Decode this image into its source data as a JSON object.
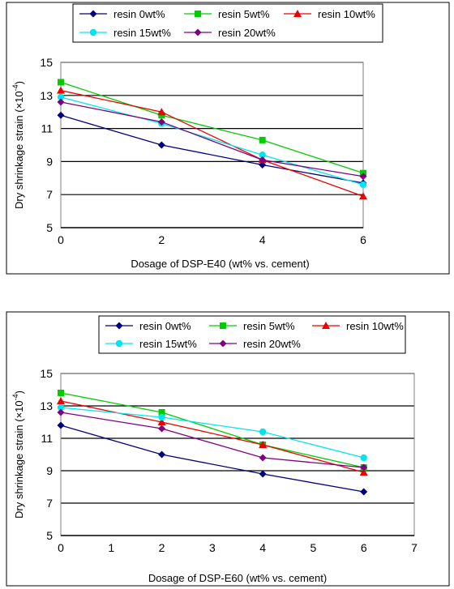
{
  "colors": {
    "resin_0": "#000080",
    "resin_5": "#00cc00",
    "resin_10": "#ee0000",
    "resin_15": "#00e5ee",
    "resin_20": "#800080",
    "gridline": "#000000",
    "border": "#000000"
  },
  "chart_data": [
    {
      "type": "line",
      "xlabel": "Dosage of DSP-E40 (wt% vs. cement)",
      "ylabel": "Dry shrinkage strain (×10",
      "ylabel_exponent": "-4",
      "ylabel_close": ")",
      "x_ticks": [
        0,
        2,
        4,
        6
      ],
      "y_ticks": [
        5,
        7,
        9,
        11,
        13,
        15
      ],
      "xlim": [
        0,
        6
      ],
      "ylim": [
        5,
        15
      ],
      "grid": "horizontal",
      "legend_placement": "top",
      "x": [
        0,
        2,
        4,
        6
      ],
      "series": [
        {
          "name": "resin 0wt%",
          "marker": "diamond",
          "color_key": "resin_0",
          "values": [
            11.8,
            10.0,
            8.8,
            7.7
          ]
        },
        {
          "name": "resin 5wt%",
          "marker": "square",
          "color_key": "resin_5",
          "values": [
            13.8,
            11.8,
            10.3,
            8.3
          ]
        },
        {
          "name": "resin 10wt%",
          "marker": "triangle",
          "color_key": "resin_10",
          "values": [
            13.3,
            12.0,
            9.1,
            6.9
          ]
        },
        {
          "name": "resin 15wt%",
          "marker": "circle",
          "color_key": "resin_15",
          "values": [
            12.9,
            11.3,
            9.4,
            7.6
          ]
        },
        {
          "name": "resin 20wt%",
          "marker": "diamond",
          "color_key": "resin_20",
          "values": [
            12.6,
            11.4,
            9.1,
            8.1
          ]
        }
      ]
    },
    {
      "type": "line",
      "xlabel": "Dosage of DSP-E60 (wt% vs. cement)",
      "ylabel": "Dry shrinkage strain (×10",
      "ylabel_exponent": "-4",
      "ylabel_close": ")",
      "x_ticks": [
        0,
        1,
        2,
        3,
        4,
        5,
        6,
        7
      ],
      "y_ticks": [
        5,
        7,
        9,
        11,
        13,
        15
      ],
      "xlim": [
        0,
        7
      ],
      "ylim": [
        5,
        15
      ],
      "grid": "horizontal",
      "legend_placement": "top",
      "x": [
        0,
        2,
        4,
        6
      ],
      "series": [
        {
          "name": "resin 0wt%",
          "marker": "diamond",
          "color_key": "resin_0",
          "values": [
            11.8,
            10.0,
            8.8,
            7.7
          ]
        },
        {
          "name": "resin 5wt%",
          "marker": "square",
          "color_key": "resin_5",
          "values": [
            13.8,
            12.6,
            10.6,
            9.2
          ]
        },
        {
          "name": "resin 10wt%",
          "marker": "triangle",
          "color_key": "resin_10",
          "values": [
            13.3,
            12.0,
            10.6,
            8.9
          ]
        },
        {
          "name": "resin 15wt%",
          "marker": "circle",
          "color_key": "resin_15",
          "values": [
            12.9,
            12.3,
            11.4,
            9.8
          ]
        },
        {
          "name": "resin 20wt%",
          "marker": "diamond",
          "color_key": "resin_20",
          "values": [
            12.6,
            11.6,
            9.8,
            9.2
          ]
        }
      ]
    }
  ]
}
